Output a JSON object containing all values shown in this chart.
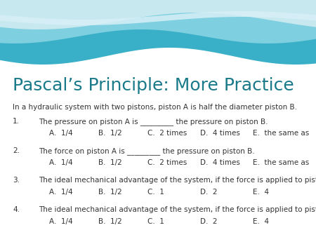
{
  "title": "Pascal’s Principle: More Practice",
  "title_color": "#1a7a8a",
  "title_fontsize": 18,
  "bg_color": "#ffffff",
  "body_text_color": "#333333",
  "intro": "In a hydraulic system with two pistons, piston A is half the diameter piston B.",
  "questions": [
    {
      "num": "1.",
      "question": "The pressure on piston A is _________ the pressure on piston B.",
      "ans_items": [
        "A.  1/4",
        "B.  1/2",
        "C.  2 times",
        "D.  4 times",
        "E.  the same as"
      ]
    },
    {
      "num": "2.",
      "question": "The force on piston A is _________ the pressure on piston B.",
      "ans_items": [
        "A.  1/4",
        "B.  1/2",
        "C.  2 times",
        "D.  4 times",
        "E.  the same as"
      ]
    },
    {
      "num": "3.",
      "question": "The ideal mechanical advantage of the system, if the force is applied to piston A is:",
      "ans_items": [
        "A.  1/4",
        "B.  1/2",
        "C.  1",
        "D.  2",
        "E.  4"
      ]
    },
    {
      "num": "4.",
      "question": "The ideal mechanical advantage of the system, if the force is applied to piston B is:",
      "ans_items": [
        "A.  1/4",
        "B.  1/2",
        "C.  1",
        "D.  2",
        "E.  4"
      ]
    }
  ],
  "wave_colors": [
    "#c8e8f0",
    "#7ecfdf",
    "#3ab0c8"
  ],
  "wave_white_streak": "#e8f6fa"
}
